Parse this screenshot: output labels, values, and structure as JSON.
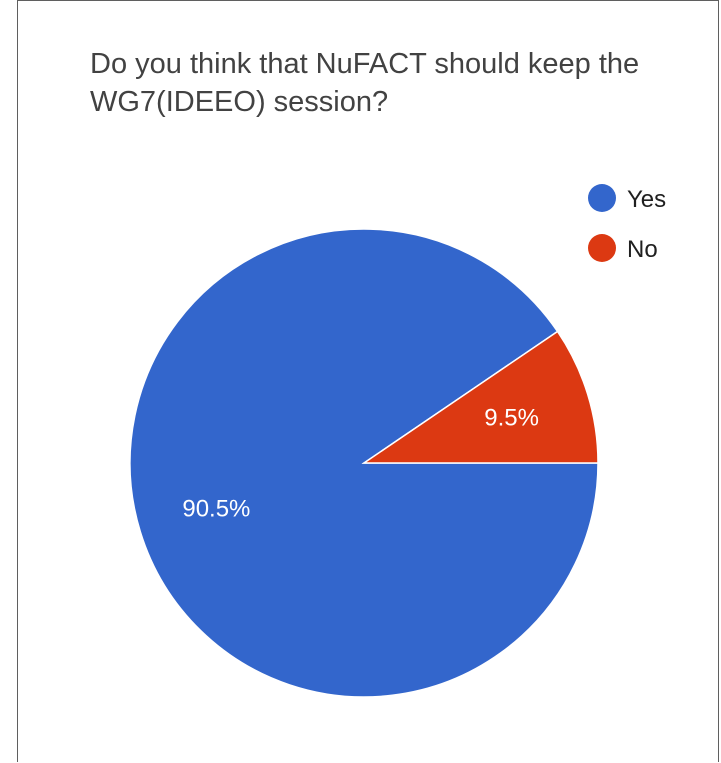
{
  "chart_data": {
    "type": "pie",
    "title": "Do you think that NuFACT should keep the WG7(IDEEO) session?",
    "categories": [
      "Yes",
      "No"
    ],
    "values": [
      90.5,
      9.5
    ],
    "data_labels": [
      "90.5%",
      "9.5%"
    ],
    "colors": [
      "#3366cc",
      "#dc3912"
    ],
    "legend": {
      "position": "top-right",
      "entries": [
        "Yes",
        "No"
      ]
    }
  }
}
